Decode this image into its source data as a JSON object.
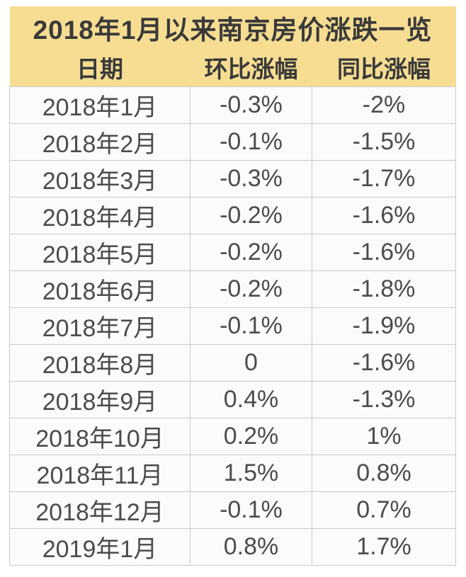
{
  "table": {
    "title": "2018年1月以来南京房价涨跌一览",
    "columns": [
      "日期",
      "环比涨幅",
      "同比涨幅"
    ],
    "rows": [
      [
        "2018年1月",
        "-0.3%",
        "-2%"
      ],
      [
        "2018年2月",
        "-0.1%",
        "-1.5%"
      ],
      [
        "2018年3月",
        "-0.3%",
        "-1.7%"
      ],
      [
        "2018年4月",
        "-0.2%",
        "-1.6%"
      ],
      [
        "2018年5月",
        "-0.2%",
        "-1.6%"
      ],
      [
        "2018年6月",
        "-0.2%",
        "-1.8%"
      ],
      [
        "2018年7月",
        "-0.1%",
        "-1.9%"
      ],
      [
        "2018年8月",
        "0",
        "-1.6%"
      ],
      [
        "2018年9月",
        "0.4%",
        "-1.3%"
      ],
      [
        "2018年10月",
        "0.2%",
        "1%"
      ],
      [
        "2018年11月",
        "1.5%",
        "0.8%"
      ],
      [
        "2018年12月",
        "-0.1%",
        "0.7%"
      ],
      [
        "2019年1月",
        "0.8%",
        "1.7%"
      ]
    ],
    "colors": {
      "header_bg": "#F6DD92",
      "title_text": "#3A3A3A",
      "cell_text": "#4C4C4C",
      "border": "#C9C9C9",
      "row_bg": "#FBFBFB"
    }
  },
  "chart_data": {
    "type": "table",
    "title": "2018年1月以来南京房价涨跌一览",
    "categories": [
      "2018年1月",
      "2018年2月",
      "2018年3月",
      "2018年4月",
      "2018年5月",
      "2018年6月",
      "2018年7月",
      "2018年8月",
      "2018年9月",
      "2018年10月",
      "2018年11月",
      "2018年12月",
      "2019年1月"
    ],
    "series": [
      {
        "name": "环比涨幅",
        "unit": "%",
        "values": [
          -0.3,
          -0.1,
          -0.3,
          -0.2,
          -0.2,
          -0.2,
          -0.1,
          0,
          0.4,
          0.2,
          1.5,
          -0.1,
          0.8
        ]
      },
      {
        "name": "同比涨幅",
        "unit": "%",
        "values": [
          -2,
          -1.5,
          -1.7,
          -1.6,
          -1.6,
          -1.8,
          -1.9,
          -1.6,
          -1.3,
          1,
          0.8,
          0.7,
          1.7
        ]
      }
    ],
    "layout": {
      "header_style": "yellow-band",
      "grid": true
    }
  }
}
